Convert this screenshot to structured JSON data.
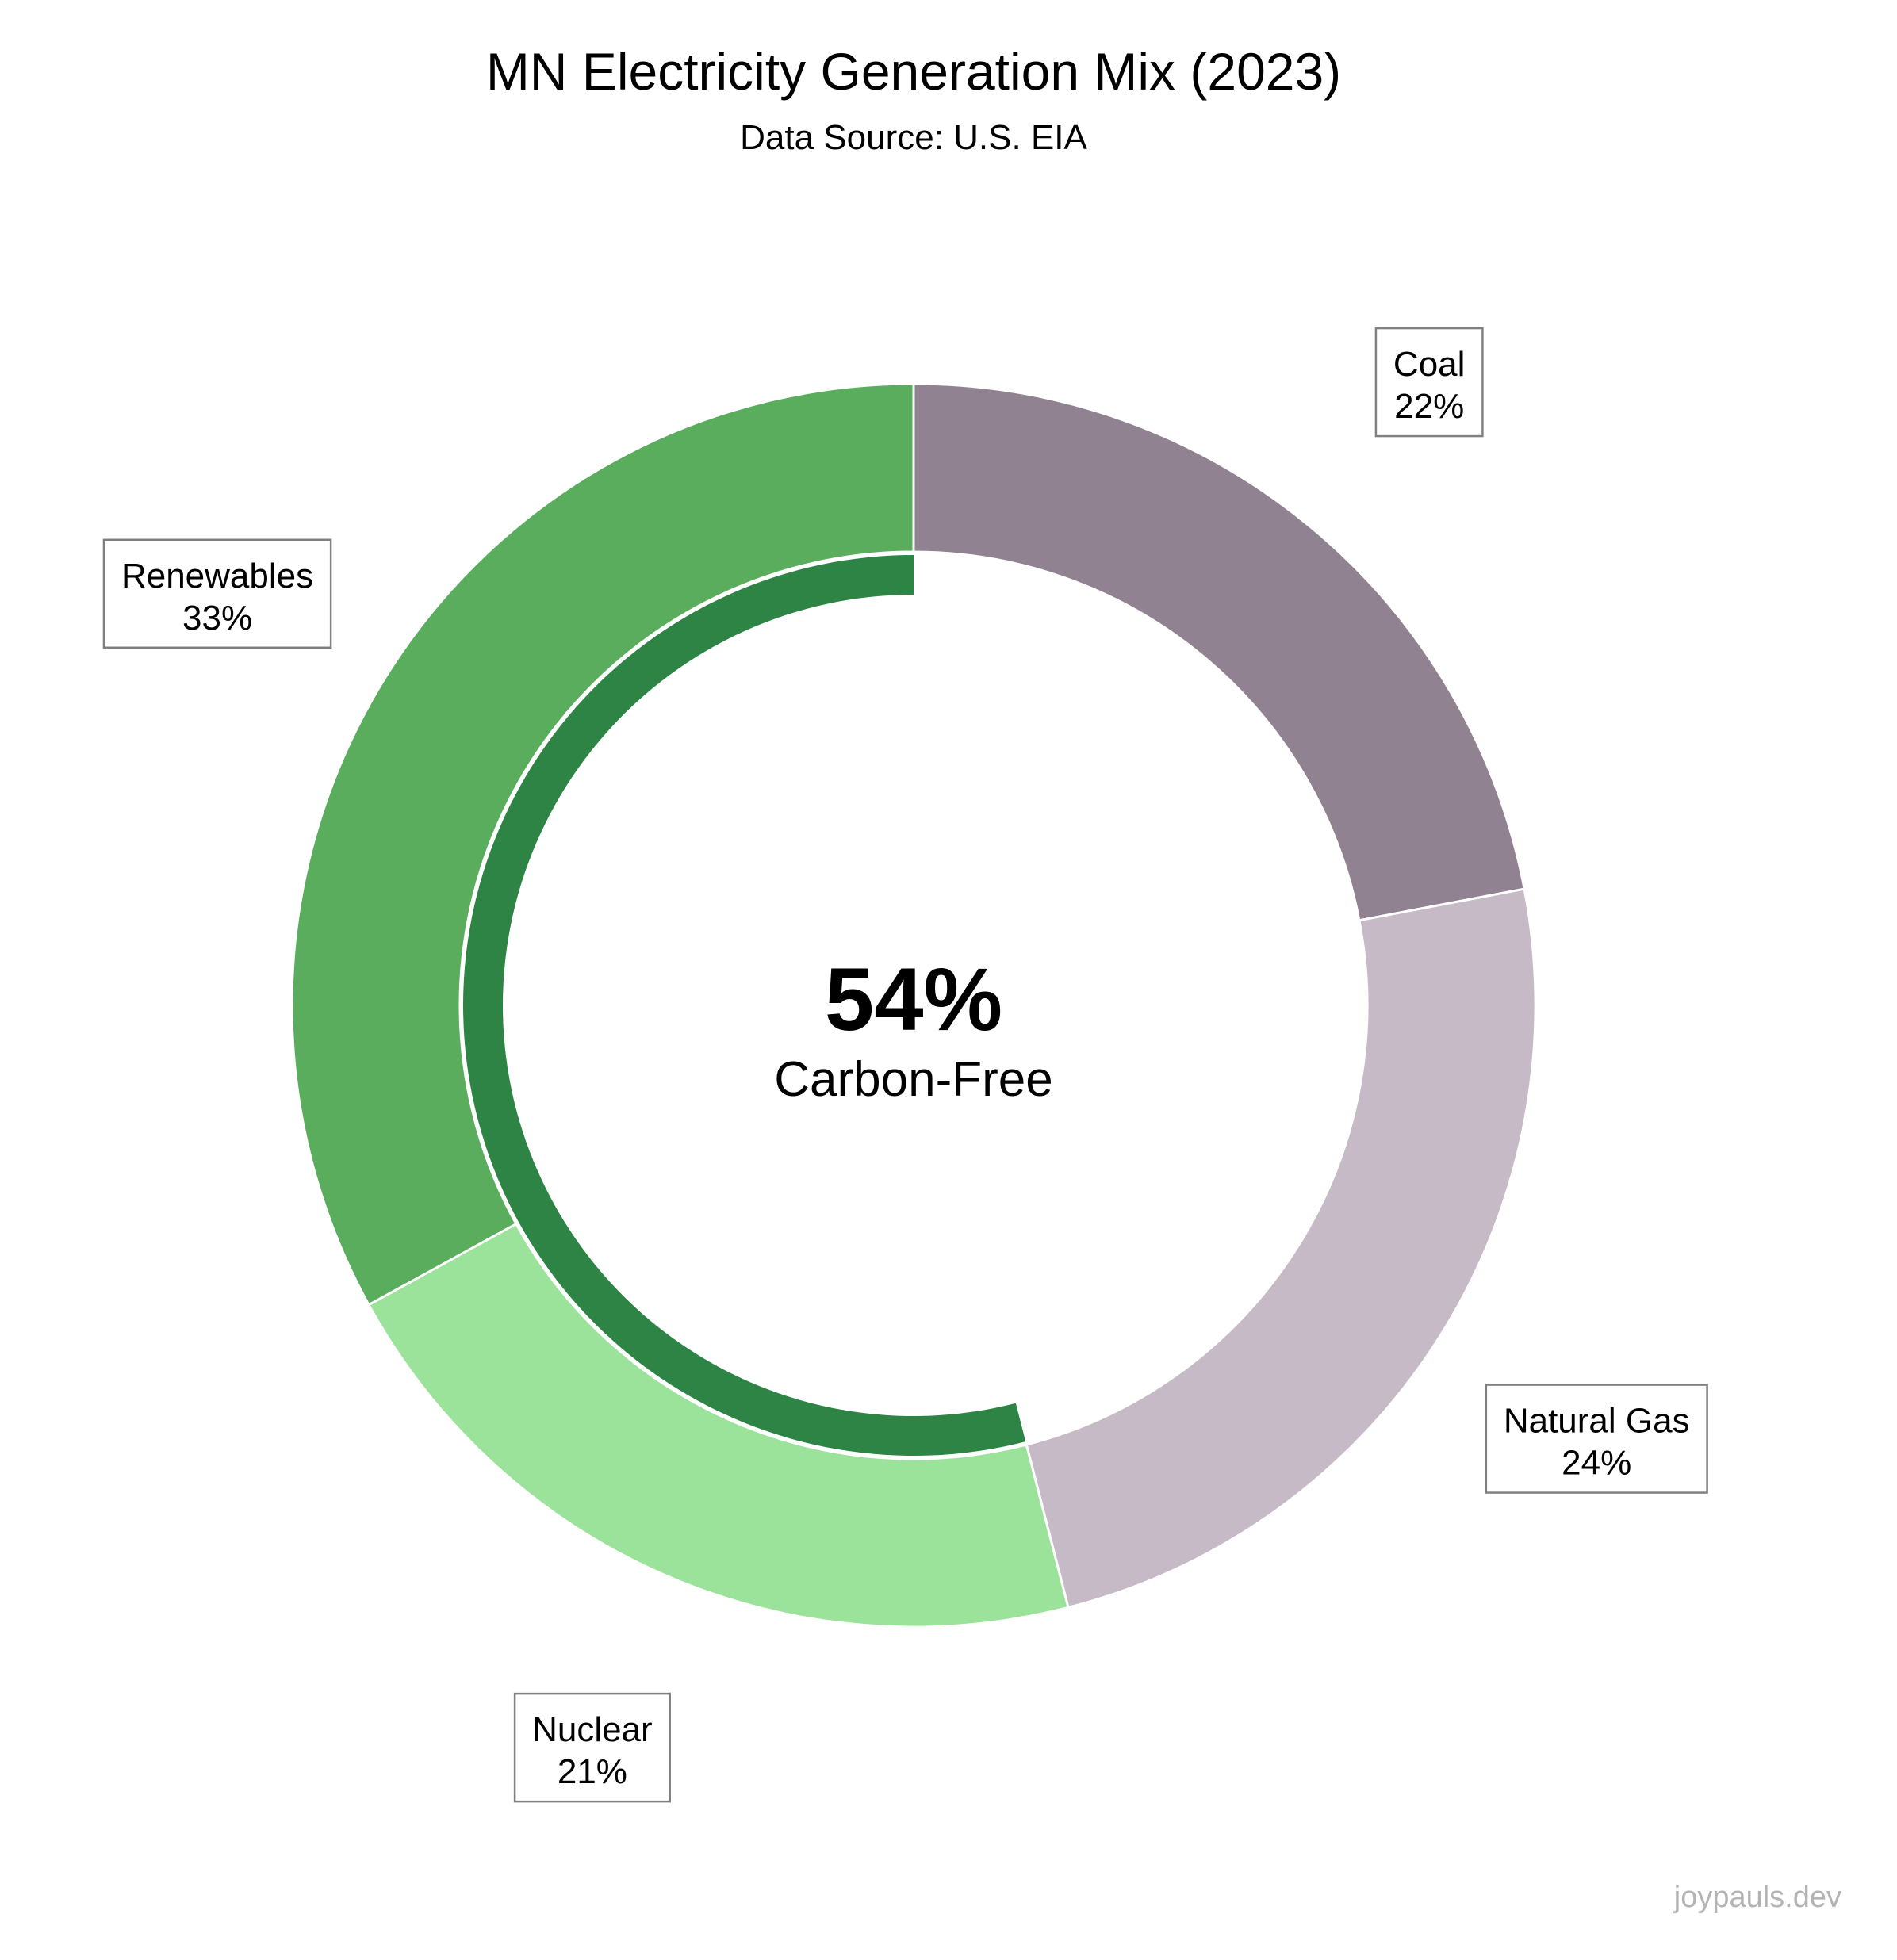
{
  "chart_data": {
    "type": "pie",
    "title": "MN Electricity Generation Mix (2023)",
    "subtitle": "Data Source: U.S. EIA",
    "donut": true,
    "slices": [
      {
        "label": "Coal",
        "value": 22,
        "value_label": "22%",
        "color": "#918291"
      },
      {
        "label": "Natural Gas",
        "value": 24,
        "value_label": "24%",
        "color": "#c5bac6"
      },
      {
        "label": "Nuclear",
        "value": 21,
        "value_label": "21%",
        "color": "#9be29b"
      },
      {
        "label": "Renewables",
        "value": 33,
        "value_label": "33%",
        "color": "#5aad5d"
      }
    ],
    "inner_ring": {
      "value": 54,
      "color": "#2d8445"
    },
    "center": {
      "value": "54%",
      "label": "Carbon-Free"
    },
    "direction": "clockwise",
    "start": "top"
  },
  "footer": {
    "watermark": "joypauls.dev"
  }
}
